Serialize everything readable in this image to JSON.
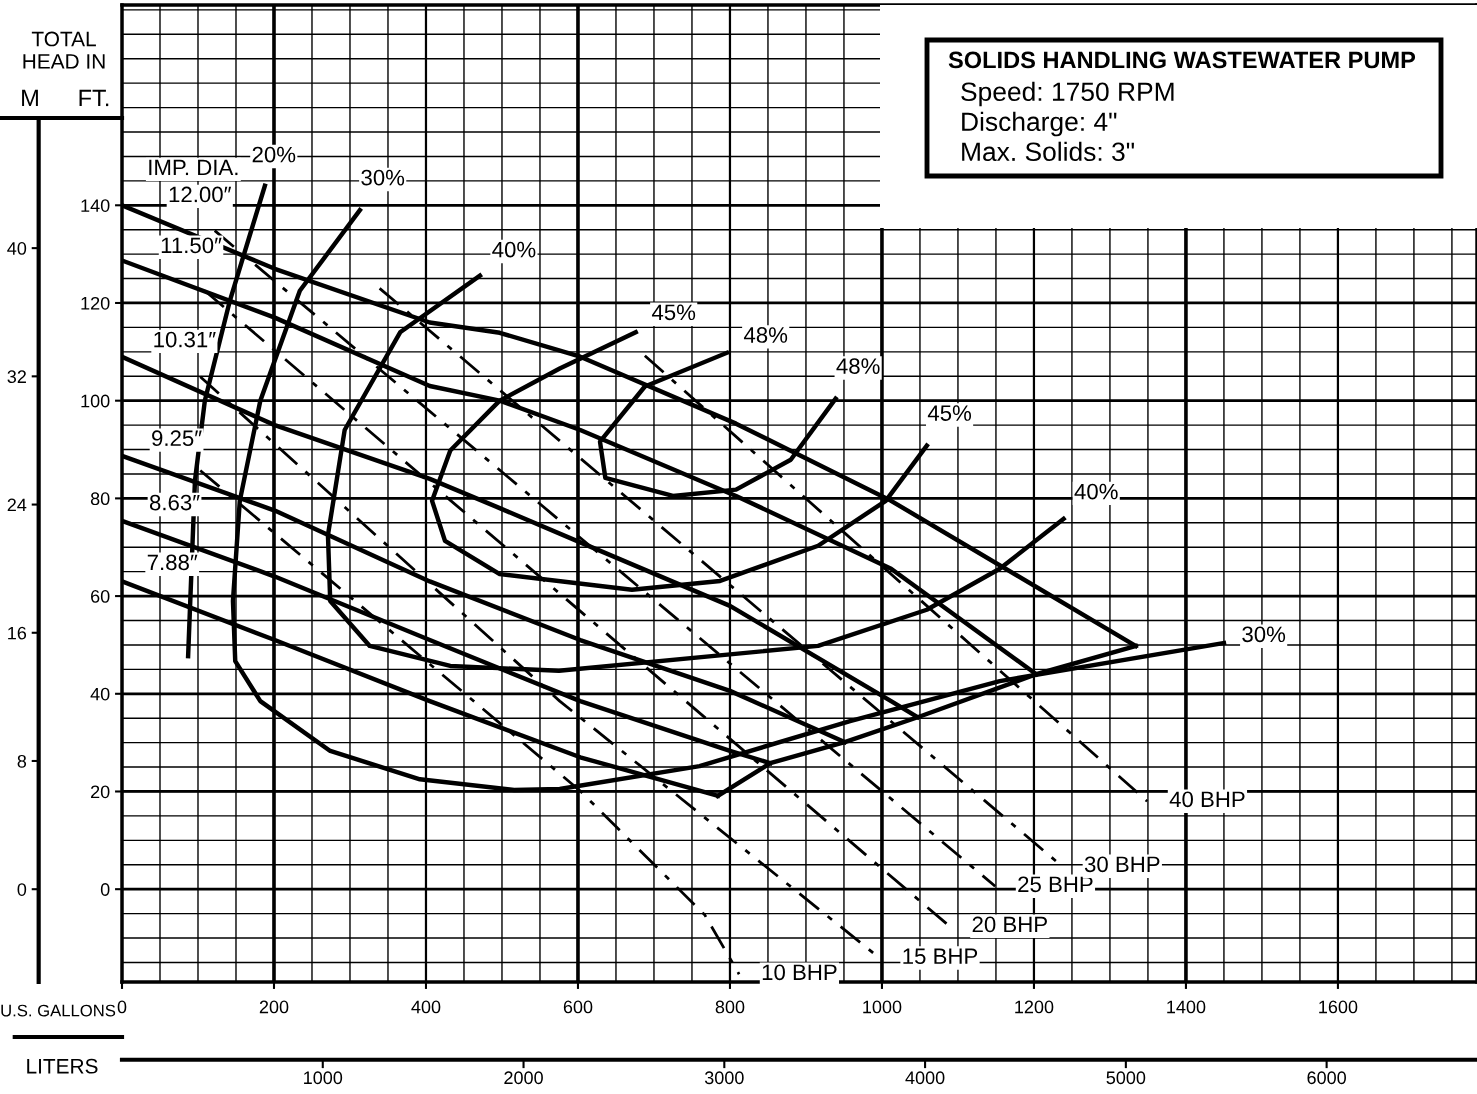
{
  "chart_data": {
    "type": "line",
    "title": "SOLIDS HANDLING WASTEWATER PUMP",
    "subtitle": "TOTAL HEAD IN",
    "xlabel": "U.S. GALLONS",
    "x2label": "LITERS",
    "ylabel": "FT.",
    "y2label": "M",
    "xlim": [
      0,
      1783
    ],
    "xticks": [
      0,
      200,
      400,
      600,
      800,
      1000,
      1200,
      1400,
      1600
    ],
    "x2lim": [
      0,
      6749
    ],
    "x2ticks": [
      1000,
      2000,
      3000,
      4000,
      5000,
      6000
    ],
    "ylim": [
      -19,
      181
    ],
    "yticks": [
      0,
      20,
      40,
      60,
      80,
      100,
      120,
      140
    ],
    "y2lim": [
      -5.79,
      55.17
    ],
    "y2ticks": [
      0,
      8,
      16,
      24,
      32,
      40
    ],
    "grid": true,
    "series": [
      {
        "color": "#000000",
        "line_style": "solid",
        "x": [
          0,
          201,
          405,
          497,
          603,
          808,
          1012,
          1334
        ],
        "values": [
          140,
          127,
          116,
          113.9,
          109,
          95.3,
          79.5,
          49.8
        ]
      },
      {
        "color": "#000000",
        "line_style": "solid",
        "x": [
          0,
          201,
          405,
          497,
          603,
          808,
          1012,
          1203
        ],
        "values": [
          128.7,
          117,
          103,
          100,
          94,
          80.5,
          65.6,
          44
        ]
      },
      {
        "color": "#000000",
        "line_style": "solid",
        "x": [
          0,
          201,
          405,
          497,
          603,
          800,
          1012,
          1047
        ],
        "values": [
          109,
          95,
          84,
          78,
          71,
          58,
          38.5,
          35.2
        ]
      },
      {
        "color": "#000000",
        "line_style": "solid",
        "x": [
          0,
          201,
          405,
          603,
          800,
          951
        ],
        "values": [
          88.7,
          77.5,
          63,
          51,
          40.6,
          30.1
        ]
      },
      {
        "color": "#000000",
        "line_style": "solid",
        "x": [
          0,
          201,
          405,
          603,
          800,
          853
        ],
        "values": [
          75.4,
          64,
          51,
          38.5,
          28.3,
          25.8
        ]
      },
      {
        "color": "#000000",
        "line_style": "solid",
        "x": [
          0,
          201,
          405,
          603,
          784
        ],
        "values": [
          63,
          51,
          38.5,
          27,
          19.1
        ]
      },
      {
        "color": "#000000",
        "line_style": "solid",
        "x": [
          784,
          853,
          951,
          1047,
          1203,
          1334
        ],
        "values": [
          19.1,
          25.8,
          30.1,
          35.2,
          44,
          49.8
        ]
      },
      {
        "color": "#000000",
        "line_style": "solid",
        "x": [
          188,
          142,
          109,
          96,
          87
        ],
        "values": [
          144,
          120.5,
          100,
          83.6,
          47.7
        ]
      },
      {
        "color": "#000000",
        "line_style": "solid",
        "x": [
          313,
          234,
          182,
          155,
          146,
          149,
          182,
          274,
          392,
          516,
          576,
          760,
          958,
          1155,
          1450
        ],
        "values": [
          139,
          122.5,
          100,
          79.5,
          59,
          46.7,
          38.5,
          28.3,
          22.5,
          20.3,
          20.5,
          25.2,
          34.4,
          42.6,
          50.4
        ]
      },
      {
        "color": "#000000",
        "line_style": "solid",
        "x": [
          471,
          366,
          293,
          271,
          274,
          326,
          432,
          575,
          916,
          1059,
          1155,
          1239
        ],
        "values": [
          125.6,
          114,
          94,
          72.5,
          59,
          49.8,
          45.7,
          44.7,
          49.8,
          57.2,
          65.6,
          75.8
        ]
      },
      {
        "color": "#000000",
        "line_style": "solid",
        "x": [
          676,
          576,
          497,
          432,
          408,
          425,
          497,
          671,
          787,
          916,
          1005,
          1059
        ],
        "values": [
          114,
          106.6,
          100,
          89.8,
          79.5,
          71.3,
          64.5,
          61.3,
          63.1,
          70.3,
          79.5,
          90.8
        ]
      },
      {
        "color": "#000000",
        "line_style": "solid",
        "x": [
          796,
          688,
          629,
          636,
          725,
          808,
          880,
          939
        ],
        "values": [
          109.8,
          102.9,
          91.6,
          84.2,
          80.5,
          81.8,
          87.9,
          100.4
        ]
      },
      {
        "color": "#000000",
        "line_style": "dashed",
        "x": [
          103,
          603,
          767,
          812
        ],
        "values": [
          85.7,
          20.1,
          -5.3,
          -17.4
        ]
      },
      {
        "color": "#000000",
        "line_style": "dashed",
        "x": [
          103,
          576,
          997
        ],
        "values": [
          104.9,
          38.5,
          -14.1
        ]
      },
      {
        "color": "#000000",
        "line_style": "dashed",
        "x": [
          109,
          1089
        ],
        "values": [
          122.5,
          -7.6
        ]
      },
      {
        "color": "#000000",
        "line_style": "dashed",
        "x": [
          122,
          1149
        ],
        "values": [
          134.8,
          0.6
        ]
      },
      {
        "color": "#000000",
        "line_style": "dashed",
        "x": [
          339,
          1237
        ],
        "values": [
          123,
          4.7
        ]
      },
      {
        "color": "#000000",
        "line_style": "dashed",
        "x": [
          688,
          1349
        ],
        "values": [
          109.2,
          18
        ]
      }
    ],
    "annotations": [
      "Speed: 1750 RPM",
      "Discharge: 4\"",
      "Max. Solids: 3\"",
      {
        "text": "IMP. DIA.",
        "x": 186,
        "y": 143
      },
      {
        "text": "20%",
        "x": 188,
        "y": 144
      },
      {
        "text": "30%",
        "x": 313,
        "y": 139
      },
      {
        "text": "30%",
        "x": 1450,
        "y": 50.4
      },
      {
        "text": "40%",
        "x": 471,
        "y": 125.6
      },
      {
        "text": "40%",
        "x": 1239,
        "y": 75.8
      },
      {
        "text": "45%",
        "x": 676,
        "y": 114
      },
      {
        "text": "45%",
        "x": 1059,
        "y": 90.8
      },
      {
        "text": "48%",
        "x": 796,
        "y": 109.8
      },
      {
        "text": "48%",
        "x": 939,
        "y": 100.4
      },
      {
        "text": "12.00″",
        "x": 83,
        "y": 134.6
      },
      {
        "text": "11.50″",
        "x": 74,
        "y": 124.4
      },
      {
        "text": "10.31″",
        "x": 61,
        "y": 104.8
      },
      {
        "text": "9.25″",
        "x": 57,
        "y": 85.5
      },
      {
        "text": "8.63″",
        "x": 54,
        "y": 72.3
      },
      {
        "text": "7.88″",
        "x": 50,
        "y": 60
      },
      {
        "text": "10 BHP",
        "x": 812,
        "y": -17.4
      },
      {
        "text": "15 BHP",
        "x": 997,
        "y": -14.1
      },
      {
        "text": "20 BHP",
        "x": 1089,
        "y": -7.6
      },
      {
        "text": "25 BHP",
        "x": 1149,
        "y": 0.6
      },
      {
        "text": "30 BHP",
        "x": 1237,
        "y": 4.7
      },
      {
        "text": "40 BHP",
        "x": 1349,
        "y": 18
      }
    ]
  }
}
